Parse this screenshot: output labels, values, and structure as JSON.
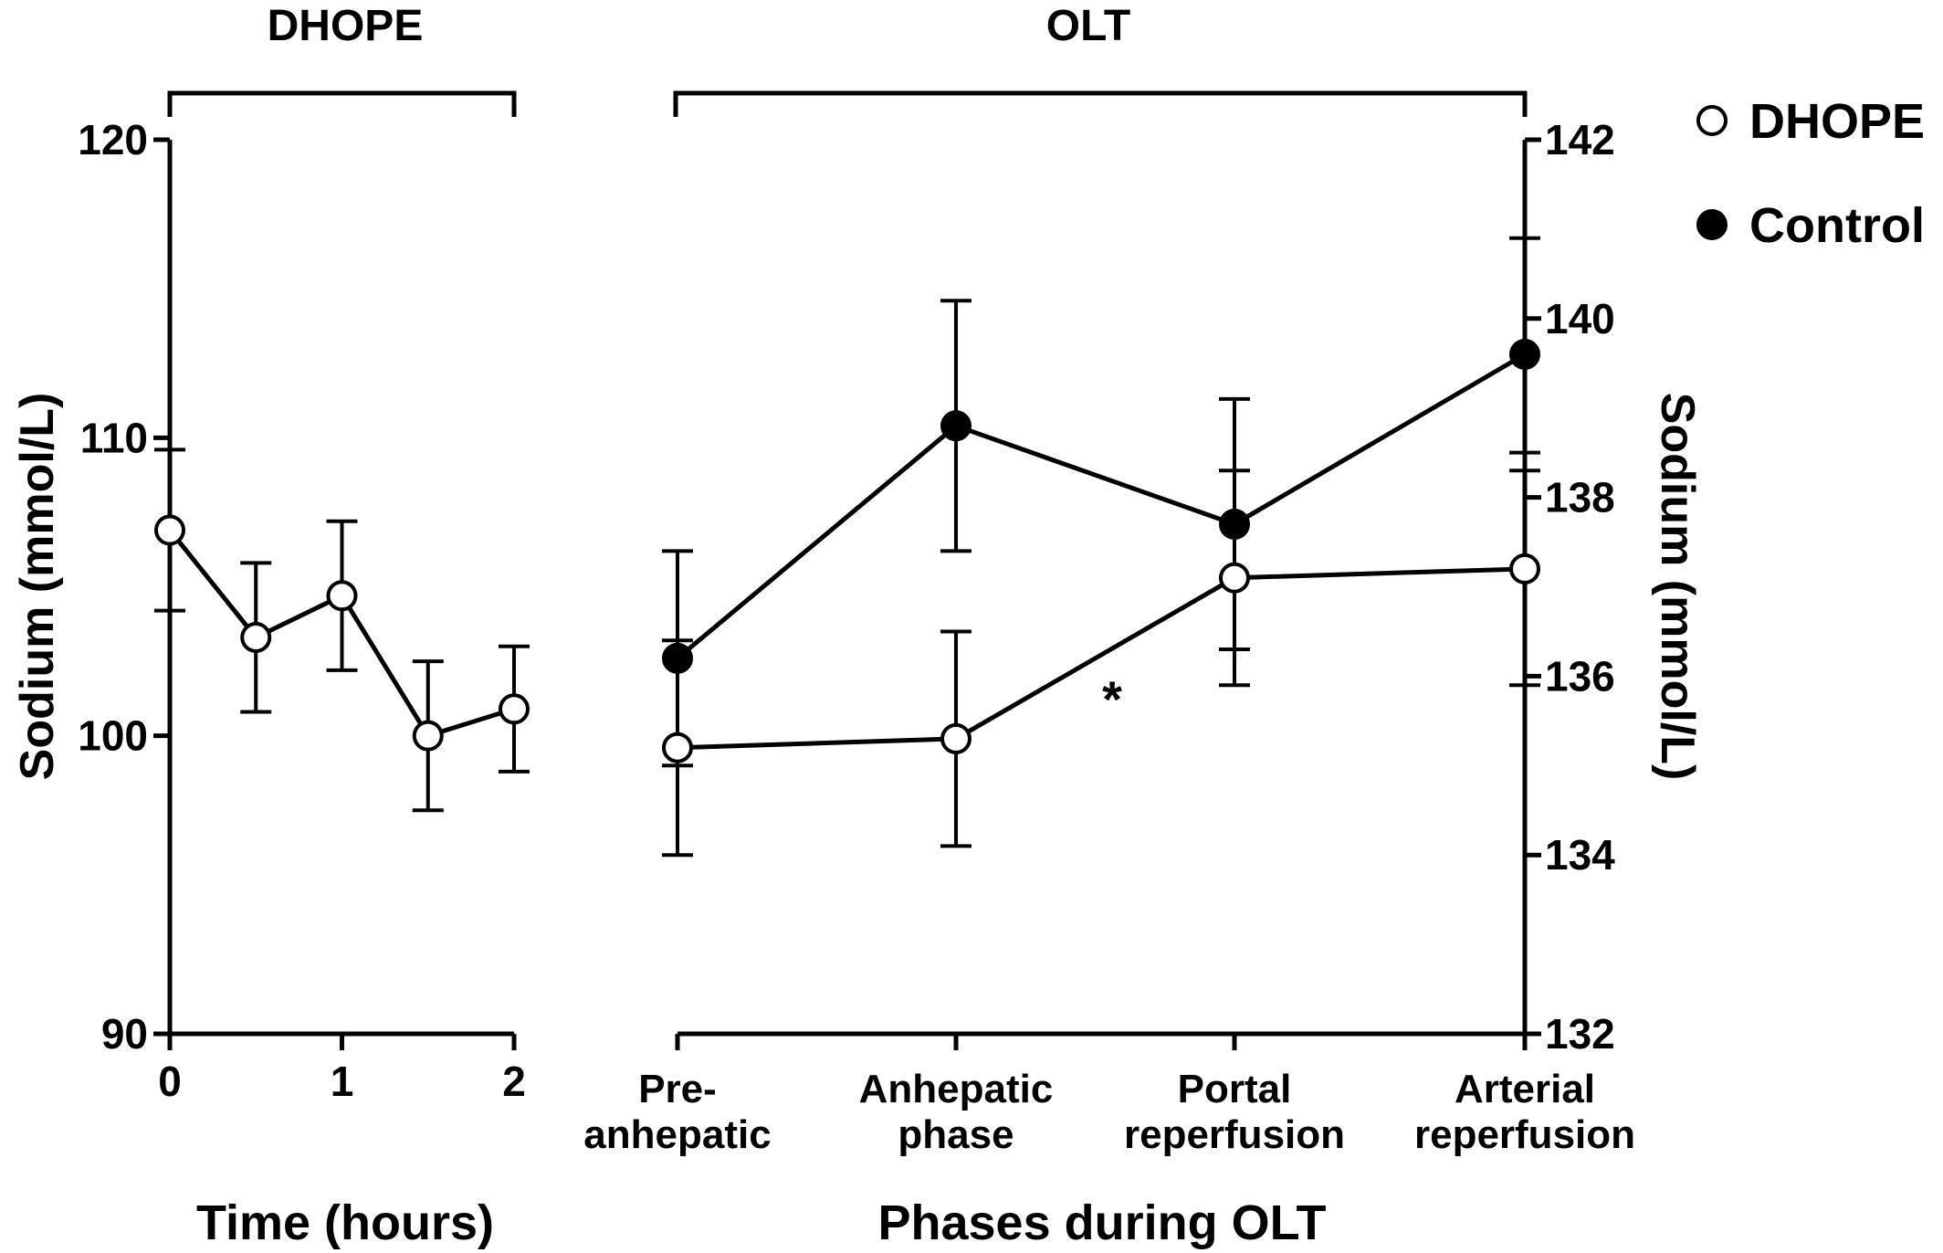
{
  "chart_data": [
    {
      "type": "line",
      "panel": "DHOPE",
      "header": "DHOPE",
      "xlabel": "Time (hours)",
      "ylabel": "Sodium (mmol/L)",
      "xlim": [
        0,
        2
      ],
      "ylim": [
        90,
        120
      ],
      "xticks": [
        "0",
        "1",
        "2"
      ],
      "yticks": [
        "90",
        "100",
        "110",
        "120"
      ],
      "series": [
        {
          "name": "DHOPE",
          "marker": "open-circle",
          "x": [
            0,
            0.5,
            1,
            1.5,
            2
          ],
          "y": [
            106.9,
            103.3,
            104.7,
            100.0,
            100.9
          ],
          "err": [
            2.7,
            2.5,
            2.5,
            2.5,
            2.1
          ]
        }
      ]
    },
    {
      "type": "line",
      "panel": "OLT",
      "header": "OLT",
      "xlabel": "Phases during OLT",
      "ylabel": "Sodium (mmol/L)",
      "ylim": [
        132,
        142
      ],
      "yticks": [
        "132",
        "134",
        "136",
        "138",
        "140",
        "142"
      ],
      "categories": [
        [
          "Pre-",
          "anhepatic"
        ],
        [
          "Anhepatic",
          "phase"
        ],
        [
          "Portal",
          "reperfusion"
        ],
        [
          "Arterial",
          "reperfusion"
        ]
      ],
      "annotation": "*",
      "series": [
        {
          "name": "DHOPE",
          "marker": "open-circle",
          "values": [
            135.2,
            135.3,
            137.1,
            137.2
          ],
          "err": [
            1.2,
            1.2,
            1.2,
            1.3
          ]
        },
        {
          "name": "Control",
          "marker": "filled-circle",
          "values": [
            136.2,
            138.8,
            137.7,
            139.6
          ],
          "err": [
            1.2,
            1.4,
            1.4,
            1.3
          ]
        }
      ]
    }
  ],
  "legend": [
    {
      "label": "DHOPE",
      "marker": "open-circle"
    },
    {
      "label": "Control",
      "marker": "filled-circle"
    }
  ]
}
